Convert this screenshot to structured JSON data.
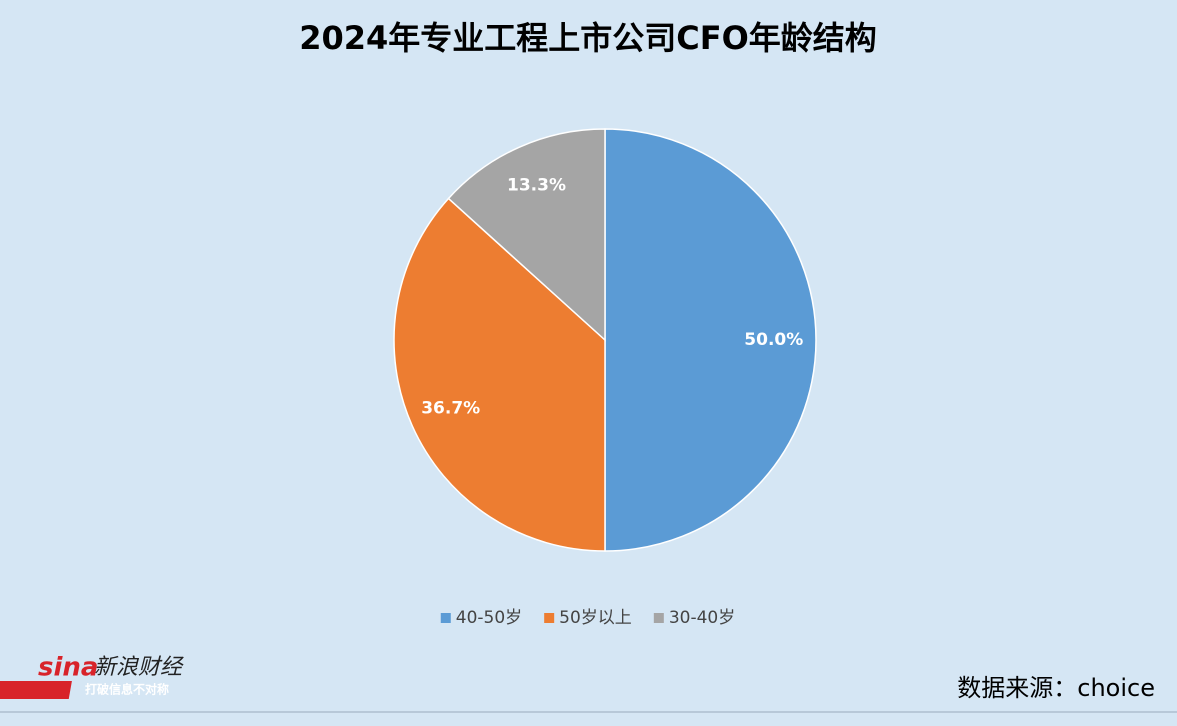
{
  "chart_data": {
    "type": "pie",
    "title": "2024年专业工程上市公司CFO年龄结构",
    "categories": [
      "40-50岁",
      "50岁以上",
      "30-40岁"
    ],
    "values": [
      50.0,
      36.7,
      13.3
    ],
    "value_labels": [
      "50.0%",
      "36.7%",
      "13.3%"
    ],
    "colors": [
      "#5b9bd5",
      "#ed7d31",
      "#a5a5a5"
    ],
    "legend": "bottom"
  },
  "source": "数据来源：choice",
  "logo": {
    "brand": "sina",
    "name": "新浪财经",
    "slogan": "打破信息不对称"
  }
}
